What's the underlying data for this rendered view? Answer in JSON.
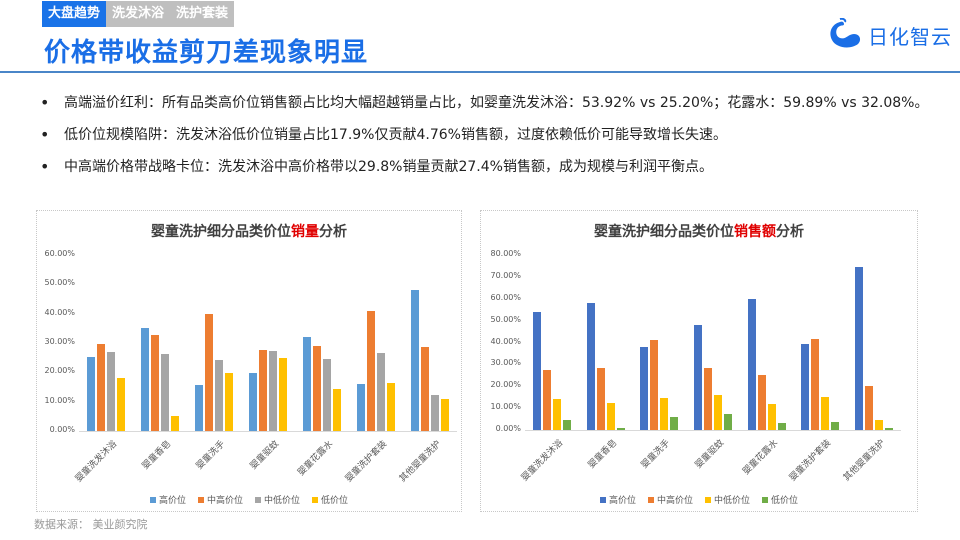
{
  "header": {
    "tabs": [
      {
        "label": "大盘趋势",
        "active": true
      },
      {
        "label": "洗发沐浴",
        "active": false
      },
      {
        "label": "洗护套装",
        "active": false
      }
    ],
    "title": "价格带收益剪刀差现象明显",
    "logo_text": "日化智云"
  },
  "bullets": [
    "高端溢价红利：所有品类高价位销售额占比均大幅超越销量占比，如婴童洗发沐浴：53.92% vs 25.20%；花露水：59.89% vs 32.08%。",
    "低价位规模陷阱：洗发沐浴低价位销量占比17.9%仅贡献4.76%销售额，过度依赖低价可能导致增长失速。",
    "中高端价格带战略卡位：洗发沐浴中高价格带以29.8%销量贡献27.4%销售额，成为规模与利润平衡点。"
  ],
  "left_chart": {
    "title_pre": "婴童洗护细分品类价位",
    "title_hl": "销量",
    "title_post": "分析"
  },
  "right_chart": {
    "title_pre": "婴童洗护细分品类价位",
    "title_hl": "销售额",
    "title_post": "分析"
  },
  "source": "数据来源：  美业颜究院",
  "chart_data": [
    {
      "type": "bar",
      "title": "婴童洗护细分品类价位销量分析",
      "xlabel": "",
      "ylabel": "",
      "ylim": [
        0,
        60
      ],
      "yticks": [
        "0.00%",
        "10.00%",
        "20.00%",
        "30.00%",
        "40.00%",
        "50.00%",
        "60.00%"
      ],
      "grid": false,
      "legend_position": "bottom",
      "categories": [
        "婴童洗发沐浴",
        "婴童香皂",
        "婴童洗手",
        "婴童驱蚊",
        "婴童花露水",
        "婴童洗护套装",
        "其他婴童洗护"
      ],
      "series": [
        {
          "name": "高价位",
          "color": "#5b9bd5",
          "values": [
            25.2,
            35.2,
            15.8,
            19.8,
            32.08,
            16.0,
            47.9
          ]
        },
        {
          "name": "中高价位",
          "color": "#ed7d31",
          "values": [
            29.8,
            32.8,
            40.0,
            27.7,
            28.9,
            40.9,
            28.6
          ]
        },
        {
          "name": "中低价位",
          "color": "#a5a5a5",
          "values": [
            27.1,
            26.3,
            24.1,
            27.2,
            24.5,
            26.6,
            12.3
          ]
        },
        {
          "name": "低价位",
          "color": "#ffc000",
          "values": [
            17.9,
            5.0,
            19.8,
            24.9,
            14.3,
            16.3,
            10.9
          ]
        }
      ]
    },
    {
      "type": "bar",
      "title": "婴童洗护细分品类价位销售额分析",
      "xlabel": "",
      "ylabel": "",
      "ylim": [
        0,
        80
      ],
      "yticks": [
        "0.00%",
        "10.00%",
        "20.00%",
        "30.00%",
        "40.00%",
        "50.00%",
        "60.00%",
        "70.00%",
        "80.00%"
      ],
      "grid": false,
      "legend_position": "bottom",
      "categories": [
        "婴童洗发沐浴",
        "婴童香皂",
        "婴童洗手",
        "婴童驱蚊",
        "婴童花露水",
        "婴童洗护套装",
        "其他婴童洗护"
      ],
      "series": [
        {
          "name": "高价位",
          "color": "#4472c4",
          "values": [
            53.92,
            58.0,
            37.9,
            48.0,
            59.89,
            39.5,
            74.5
          ]
        },
        {
          "name": "中高价位",
          "color": "#ed7d31",
          "values": [
            27.4,
            28.4,
            41.2,
            28.2,
            25.0,
            41.5,
            20.0
          ]
        },
        {
          "name": "中低价位",
          "color": "#ffc000",
          "values": [
            14.0,
            12.3,
            14.6,
            16.2,
            11.7,
            15.2,
            4.8
          ]
        },
        {
          "name": "低价位",
          "color": "#70ad47",
          "values": [
            4.76,
            1.0,
            6.0,
            7.5,
            3.4,
            3.8,
            1.0
          ]
        }
      ]
    }
  ]
}
